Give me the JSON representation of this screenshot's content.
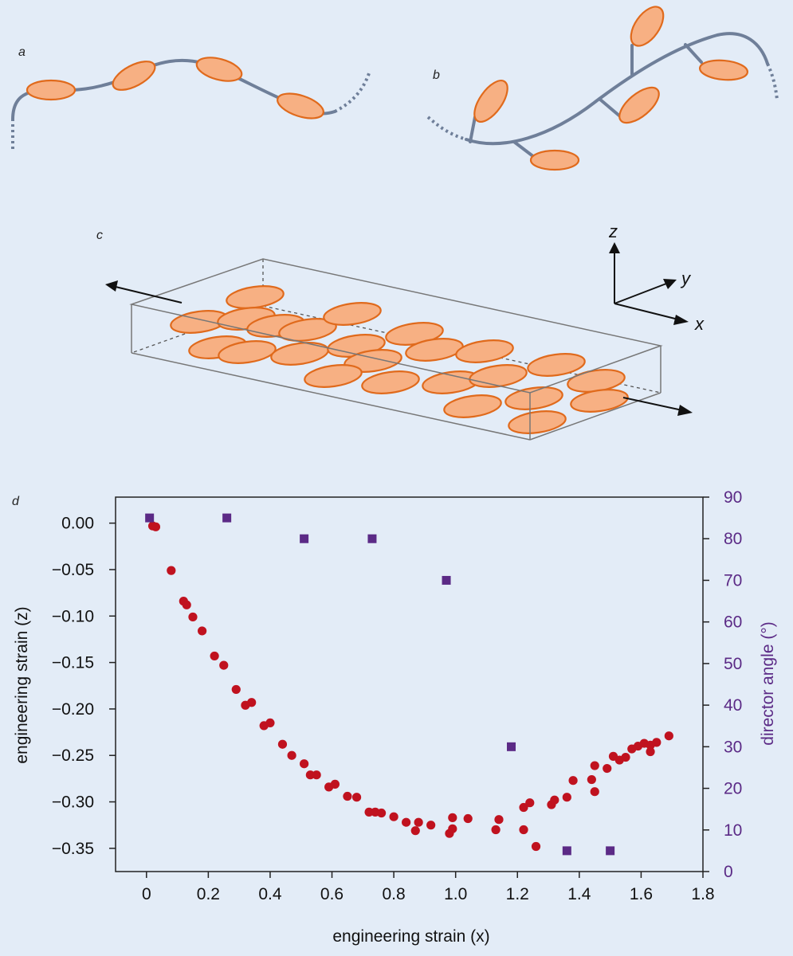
{
  "panels": {
    "a": "a",
    "b": "b",
    "c": "c",
    "d": "d"
  },
  "axes3d": {
    "z": "z",
    "y": "y",
    "x": "x"
  },
  "colors": {
    "background": "#e3ecf7",
    "mesogen_fill": "#f7b083",
    "mesogen_stroke": "#e06a1c",
    "chain": "#6f7f99",
    "strain_series": "#c0121f",
    "angle_series": "#5b2a86"
  },
  "chart_data": {
    "type": "scatter",
    "xlabel": "engineering strain (x)",
    "ylabel": "engineering strain (z)",
    "y2label": "director angle (°)",
    "xlim": [
      -0.1,
      1.8
    ],
    "ylim": [
      -0.375,
      0.028
    ],
    "y2lim": [
      0,
      90
    ],
    "xticks": [
      "0",
      "0.2",
      "0.4",
      "0.6",
      "0.8",
      "1.0",
      "1.2",
      "1.4",
      "1.6",
      "1.8"
    ],
    "yticks": [
      "0.00",
      "−0.05",
      "−0.10",
      "−0.15",
      "−0.20",
      "−0.25",
      "−0.30",
      "−0.35"
    ],
    "y2ticks": [
      "0",
      "10",
      "20",
      "30",
      "40",
      "50",
      "60",
      "70",
      "80",
      "90"
    ],
    "grid": false,
    "series": [
      {
        "axis": "left",
        "marker": "circle",
        "points": [
          [
            0.02,
            -0.003
          ],
          [
            0.03,
            -0.004
          ],
          [
            0.08,
            -0.051
          ],
          [
            0.12,
            -0.084
          ],
          [
            0.13,
            -0.088
          ],
          [
            0.15,
            -0.101
          ],
          [
            0.18,
            -0.116
          ],
          [
            0.22,
            -0.143
          ],
          [
            0.25,
            -0.153
          ],
          [
            0.29,
            -0.179
          ],
          [
            0.32,
            -0.196
          ],
          [
            0.34,
            -0.193
          ],
          [
            0.38,
            -0.218
          ],
          [
            0.4,
            -0.215
          ],
          [
            0.44,
            -0.238
          ],
          [
            0.47,
            -0.25
          ],
          [
            0.51,
            -0.259
          ],
          [
            0.53,
            -0.271
          ],
          [
            0.55,
            -0.271
          ],
          [
            0.59,
            -0.284
          ],
          [
            0.61,
            -0.281
          ],
          [
            0.65,
            -0.294
          ],
          [
            0.68,
            -0.295
          ],
          [
            0.72,
            -0.311
          ],
          [
            0.74,
            -0.311
          ],
          [
            0.76,
            -0.312
          ],
          [
            0.8,
            -0.316
          ],
          [
            0.84,
            -0.322
          ],
          [
            0.88,
            -0.322
          ],
          [
            0.92,
            -0.325
          ],
          [
            0.87,
            -0.331
          ],
          [
            0.98,
            -0.334
          ],
          [
            0.99,
            -0.317
          ],
          [
            0.99,
            -0.329
          ],
          [
            1.04,
            -0.318
          ],
          [
            1.13,
            -0.33
          ],
          [
            1.14,
            -0.319
          ],
          [
            1.22,
            -0.306
          ],
          [
            1.22,
            -0.33
          ],
          [
            1.24,
            -0.301
          ],
          [
            1.26,
            -0.348
          ],
          [
            1.31,
            -0.303
          ],
          [
            1.32,
            -0.298
          ],
          [
            1.36,
            -0.295
          ],
          [
            1.38,
            -0.277
          ],
          [
            1.44,
            -0.276
          ],
          [
            1.45,
            -0.261
          ],
          [
            1.45,
            -0.289
          ],
          [
            1.49,
            -0.264
          ],
          [
            1.51,
            -0.251
          ],
          [
            1.53,
            -0.255
          ],
          [
            1.55,
            -0.252
          ],
          [
            1.57,
            -0.243
          ],
          [
            1.59,
            -0.24
          ],
          [
            1.61,
            -0.237
          ],
          [
            1.63,
            -0.239
          ],
          [
            1.63,
            -0.246
          ],
          [
            1.65,
            -0.236
          ],
          [
            1.69,
            -0.229
          ]
        ]
      },
      {
        "axis": "right",
        "marker": "square",
        "points": [
          [
            0.01,
            85
          ],
          [
            0.26,
            85
          ],
          [
            0.51,
            80
          ],
          [
            0.73,
            80
          ],
          [
            0.97,
            70
          ],
          [
            1.18,
            30
          ],
          [
            1.36,
            5
          ],
          [
            1.5,
            5
          ]
        ]
      }
    ]
  }
}
